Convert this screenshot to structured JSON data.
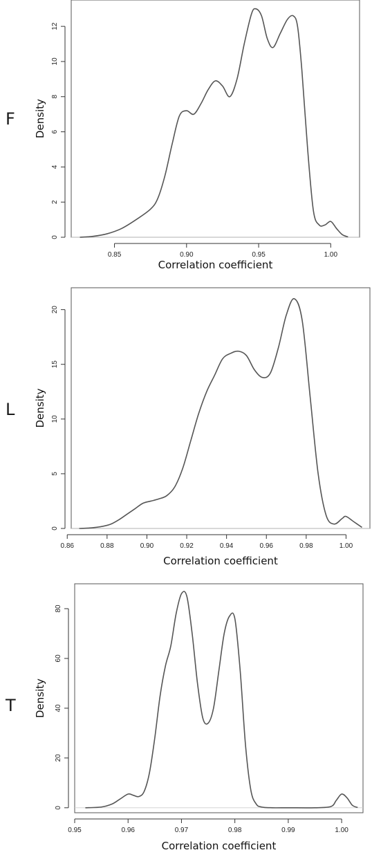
{
  "chart_data": [
    {
      "type": "line",
      "panel_label": "F",
      "xlabel": "Correlation coefficient",
      "ylabel": "Density",
      "xlim": [
        0.82,
        1.02
      ],
      "ylim": [
        0,
        13.5
      ],
      "xticks": [
        "0.85",
        "0.90",
        "0.95",
        "1.00"
      ],
      "yticks": [
        "0",
        "2",
        "4",
        "6",
        "8",
        "10",
        "12"
      ],
      "grid": false,
      "series": [
        {
          "x": [
            0.826,
            0.835,
            0.845,
            0.855,
            0.865,
            0.875,
            0.88,
            0.885,
            0.89,
            0.895,
            0.9,
            0.905,
            0.91,
            0.915,
            0.92,
            0.925,
            0.93,
            0.935,
            0.94,
            0.945,
            0.948,
            0.952,
            0.956,
            0.96,
            0.965,
            0.97,
            0.974,
            0.977,
            0.98,
            0.984,
            0.988,
            0.992,
            0.996,
            1.0,
            1.004,
            1.008,
            1.012
          ],
          "y": [
            0.0,
            0.05,
            0.2,
            0.5,
            1.0,
            1.6,
            2.2,
            3.5,
            5.3,
            6.9,
            7.2,
            7.0,
            7.6,
            8.4,
            8.9,
            8.6,
            8.0,
            9.0,
            11.0,
            12.7,
            13.0,
            12.6,
            11.3,
            10.8,
            11.6,
            12.4,
            12.6,
            12.0,
            9.5,
            5.0,
            1.5,
            0.7,
            0.7,
            0.9,
            0.5,
            0.15,
            0.02
          ]
        }
      ]
    },
    {
      "type": "line",
      "panel_label": "L",
      "xlabel": "Correlation coefficient",
      "ylabel": "Density",
      "xlim": [
        0.862,
        1.012
      ],
      "ylim": [
        0,
        22
      ],
      "xticks": [
        "0.86",
        "0.88",
        "0.90",
        "0.92",
        "0.94",
        "0.96",
        "0.98",
        "1.00"
      ],
      "yticks": [
        "0",
        "5",
        "10",
        "15",
        "20"
      ],
      "grid": false,
      "series": [
        {
          "x": [
            0.866,
            0.872,
            0.878,
            0.882,
            0.886,
            0.89,
            0.894,
            0.898,
            0.902,
            0.906,
            0.91,
            0.914,
            0.918,
            0.922,
            0.926,
            0.93,
            0.934,
            0.938,
            0.942,
            0.946,
            0.95,
            0.954,
            0.958,
            0.962,
            0.966,
            0.97,
            0.974,
            0.978,
            0.982,
            0.986,
            0.99,
            0.994,
            0.998,
            1.0,
            1.004,
            1.008
          ],
          "y": [
            0.0,
            0.05,
            0.2,
            0.4,
            0.8,
            1.3,
            1.8,
            2.3,
            2.5,
            2.7,
            3.0,
            3.8,
            5.5,
            8.0,
            10.5,
            12.5,
            14.0,
            15.5,
            16.0,
            16.2,
            15.8,
            14.5,
            13.8,
            14.2,
            16.5,
            19.5,
            21.0,
            19.0,
            12.0,
            5.0,
            1.2,
            0.4,
            0.9,
            1.1,
            0.6,
            0.1
          ]
        }
      ]
    },
    {
      "type": "line",
      "panel_label": "T",
      "xlabel": "Correlation coefficient",
      "ylabel": "Density",
      "xlim": [
        0.95,
        1.004
      ],
      "ylim": [
        -2,
        90
      ],
      "xticks": [
        "0.95",
        "0.96",
        "0.97",
        "0.98",
        "0.99",
        "1.00"
      ],
      "yticks": [
        "0",
        "20",
        "40",
        "60",
        "80"
      ],
      "grid": false,
      "series": [
        {
          "x": [
            0.952,
            0.955,
            0.957,
            0.9585,
            0.96,
            0.961,
            0.962,
            0.963,
            0.964,
            0.965,
            0.966,
            0.967,
            0.968,
            0.969,
            0.97,
            0.971,
            0.972,
            0.973,
            0.974,
            0.975,
            0.976,
            0.977,
            0.978,
            0.979,
            0.98,
            0.981,
            0.982,
            0.983,
            0.984,
            0.985,
            0.987,
            0.99,
            0.995,
            0.998,
            0.999,
            1.0,
            1.001,
            1.002,
            1.003
          ],
          "y": [
            0.0,
            0.3,
            1.5,
            3.5,
            5.5,
            5.0,
            4.5,
            6.5,
            14.0,
            28.0,
            45.0,
            57.0,
            65.0,
            78.0,
            86.0,
            85.0,
            70.0,
            50.0,
            36.0,
            34.0,
            40.0,
            55.0,
            70.0,
            77.0,
            76.0,
            55.0,
            25.0,
            7.0,
            1.5,
            0.3,
            0.0,
            0.0,
            0.0,
            0.5,
            3.0,
            5.5,
            4.0,
            1.0,
            0.1
          ]
        }
      ]
    }
  ]
}
